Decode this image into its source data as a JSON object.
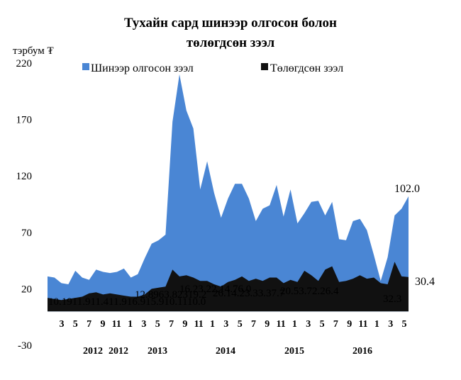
{
  "chart_data": {
    "type": "area",
    "title_line1": "Тухайн сард шинээр олгосон болон",
    "title_line2": "төлөгдсөн зээл",
    "ylabel": "тэрбум ₮",
    "ylim": [
      -30,
      220
    ],
    "yticks": [
      "220",
      "170",
      "120",
      "70",
      "20",
      "-30"
    ],
    "x_tick_labels": [
      "3",
      "5",
      "7",
      "9",
      "11",
      "1",
      "3",
      "5",
      "7",
      "9",
      "11",
      "1",
      "3",
      "5",
      "7",
      "9",
      "11",
      "1",
      "3",
      "5",
      "7",
      "9",
      "11",
      "1",
      "3",
      "5"
    ],
    "year_labels": [
      "2012",
      "2012",
      "2013",
      "2014",
      "2015",
      "2016"
    ],
    "legend_position": "top",
    "series": [
      {
        "name": "Шинээр олгосон зээл",
        "color": "#4a86d4",
        "values": [
          31,
          30,
          25,
          24,
          36,
          30,
          28,
          37,
          35,
          34,
          35,
          38,
          30,
          33,
          47,
          60,
          63,
          68,
          168,
          210,
          178,
          162,
          108,
          133,
          105,
          83,
          100,
          113,
          113,
          100,
          80,
          91,
          94,
          112,
          84,
          108,
          78,
          87,
          97,
          98,
          85,
          97,
          64,
          63,
          80,
          82,
          72,
          50,
          27,
          48,
          85,
          91,
          102
        ]
      },
      {
        "name": "Төлөгдсөн зээл",
        "color": "#111111",
        "values": [
          12,
          11,
          10,
          11,
          12,
          13,
          16,
          17,
          15,
          16,
          15,
          14,
          13,
          13,
          15,
          20,
          21,
          22,
          37,
          31,
          32,
          30,
          27,
          27,
          24,
          22,
          26,
          28,
          31,
          27,
          29,
          27,
          30,
          30,
          25,
          28,
          26,
          36,
          32,
          27,
          37,
          40,
          26,
          27,
          29,
          32,
          29,
          30,
          25,
          24,
          44,
          31,
          30.4
        ]
      }
    ],
    "end_labels": [
      "102.0",
      "30.4"
    ],
    "data_label_rows": [
      "10.1911.911.411.916.915.910.1110.0",
      "12.8963.82319.2",
      "16.23.22.14.76.0",
      "26.14.23.33.37.7",
      "20.53.72.26.4",
      "32.3"
    ]
  }
}
